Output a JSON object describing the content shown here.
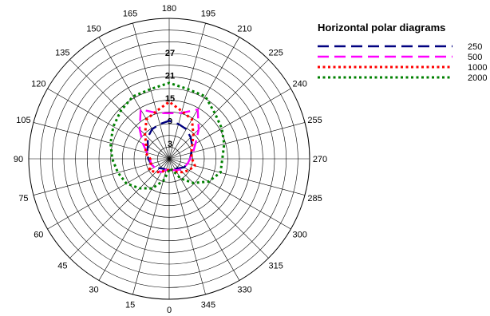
{
  "chart_data": {
    "type": "polar-line",
    "title": "Horizontal polar diagrams",
    "angle_labels": [
      "0",
      "15",
      "30",
      "45",
      "60",
      "75",
      "90",
      "105",
      "120",
      "135",
      "150",
      "165",
      "180",
      "195",
      "210",
      "225",
      "240",
      "255",
      "270",
      "285",
      "300",
      "315",
      "330",
      "345"
    ],
    "radial_ticks": [
      3,
      9,
      15,
      21,
      27
    ],
    "radial_range": [
      -1,
      36
    ],
    "angle_unit": "degrees",
    "zero_direction": "bottom",
    "direction": "counterclockwise",
    "grid": true,
    "legend_position": "top-right",
    "series": [
      {
        "name": "250",
        "color": "#000080",
        "dash": "long-dash",
        "angles": [
          0,
          15,
          30,
          45,
          60,
          75,
          90,
          105,
          120,
          135,
          150,
          165,
          180,
          195,
          210,
          225,
          240,
          255,
          270,
          285,
          300,
          315,
          330,
          345
        ],
        "values": [
          2,
          2,
          2,
          2.5,
          3.5,
          4,
          4.5,
          5,
          5.5,
          7,
          8,
          8.5,
          9,
          8.5,
          8,
          7,
          6,
          5,
          4.5,
          4,
          3.5,
          2.5,
          2,
          2
        ]
      },
      {
        "name": "500",
        "color": "#ff00ff",
        "dash": "long-dash",
        "angles": [
          0,
          15,
          30,
          45,
          60,
          75,
          90,
          105,
          120,
          135,
          150,
          165,
          180,
          195,
          210,
          225,
          240,
          255,
          270,
          285,
          300,
          315,
          330,
          345
        ],
        "values": [
          2,
          2,
          3,
          3.5,
          3.5,
          4,
          4,
          5,
          7,
          10,
          14,
          11.5,
          11,
          11.5,
          14,
          10,
          7,
          5.5,
          4.5,
          4,
          3.5,
          3,
          2.5,
          2
        ]
      },
      {
        "name": "1000",
        "color": "#ff0000",
        "dash": "dotted",
        "angles": [
          0,
          15,
          30,
          45,
          60,
          75,
          90,
          105,
          120,
          135,
          150,
          165,
          180,
          195,
          210,
          225,
          240,
          255,
          270,
          285,
          300,
          315,
          330,
          345
        ],
        "values": [
          2,
          2,
          3,
          4,
          5,
          4,
          4,
          5.5,
          6,
          8,
          11,
          12,
          14,
          12,
          11,
          8,
          6,
          5,
          5,
          6,
          5,
          4,
          3,
          2
        ]
      },
      {
        "name": "2000",
        "color": "#008000",
        "dash": "dotted",
        "angles": [
          0,
          15,
          30,
          45,
          60,
          75,
          90,
          105,
          120,
          135,
          150,
          165,
          180,
          195,
          210,
          225,
          240,
          255,
          270,
          285,
          300,
          315,
          330,
          345
        ],
        "values": [
          2,
          5,
          8,
          10,
          12,
          13,
          14,
          15,
          16,
          17,
          18,
          18,
          19,
          18,
          18,
          16,
          15,
          14,
          13,
          13,
          11,
          8,
          5,
          2
        ]
      }
    ]
  }
}
